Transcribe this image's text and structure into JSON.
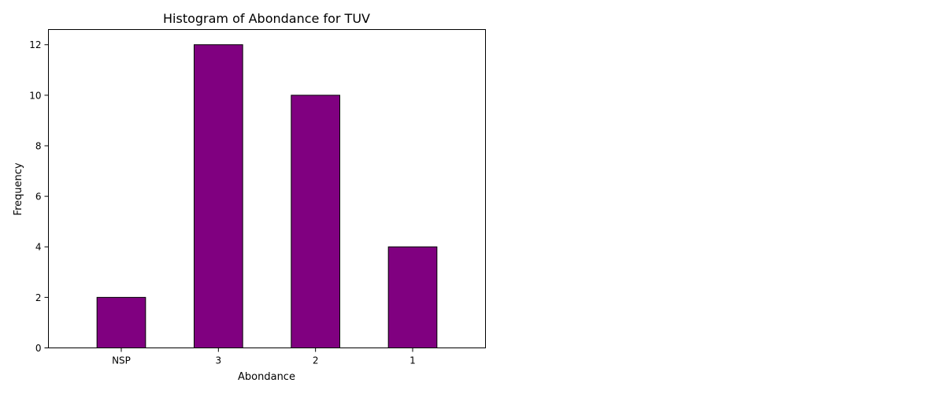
{
  "chart_data": {
    "type": "bar",
    "title": "Histogram of Abondance for TUV",
    "xlabel": "Abondance",
    "ylabel": "Frequency",
    "categories": [
      "NSP",
      "3",
      "2",
      "1"
    ],
    "values": [
      2,
      12,
      10,
      4
    ],
    "ylim": [
      0,
      12.6
    ],
    "yticks": [
      "0",
      "2",
      "4",
      "6",
      "8",
      "10",
      "12"
    ],
    "bar_color": "#800080",
    "edge_color": "#000000",
    "grid": false,
    "legend": "none"
  }
}
